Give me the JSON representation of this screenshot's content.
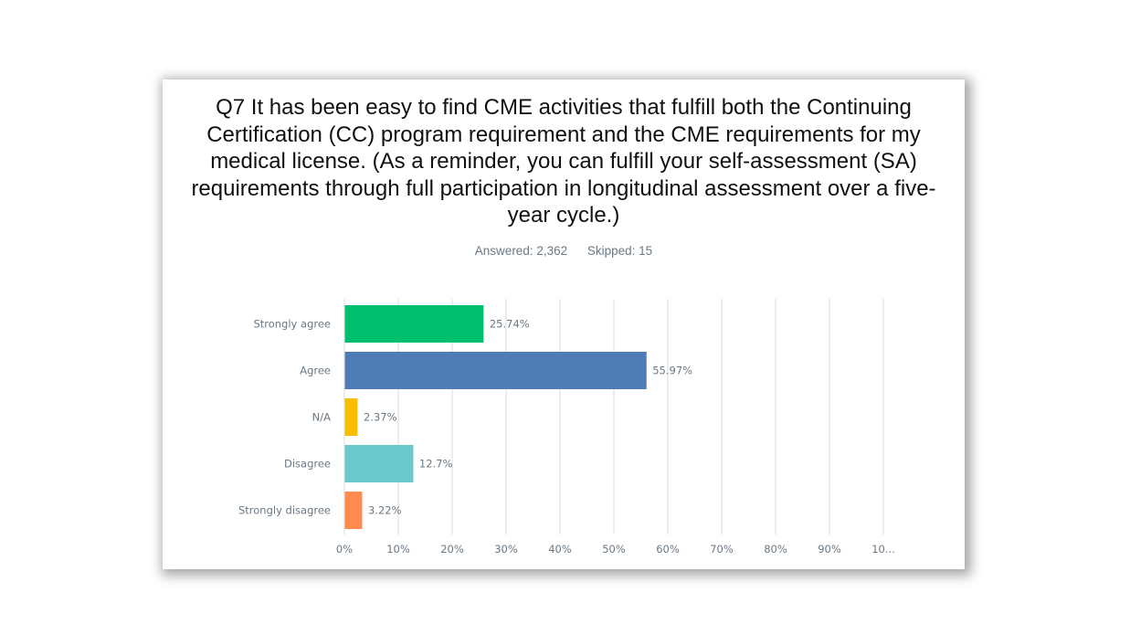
{
  "question": {
    "title": "Q7 It has been easy to find CME activities that fulfill both the Continuing Certification (CC) program requirement and the CME requirements for my medical license. (As a reminder, you can fulfill your self-assessment (SA) requirements through full participation in longitudinal assessment over a five-year cycle.)",
    "answered": "Answered: 2,362",
    "skipped": "Skipped: 15"
  },
  "chart_data": {
    "type": "bar",
    "orientation": "horizontal",
    "title": "Q7 It has been easy to find CME activities that fulfill both the Continuing Certification (CC) program requirement and the CME requirements for my medical license. (As a reminder, you can fulfill your self-assessment (SA) requirements through full participation in longitudinal assessment over a five-year cycle.)",
    "categories": [
      "Strongly agree",
      "Agree",
      "N/A",
      "Disagree",
      "Strongly disagree"
    ],
    "values": [
      25.74,
      55.97,
      2.37,
      12.7,
      3.22
    ],
    "data_labels": [
      "25.74%",
      "55.97%",
      "2.37%",
      "12.7%",
      "3.22%"
    ],
    "colors": [
      "#00bf6f",
      "#507cb6",
      "#f9be00",
      "#6bc8cd",
      "#ff8b4f"
    ],
    "xlabel": "",
    "ylabel": "",
    "xlim": [
      0,
      100
    ],
    "x_ticks": [
      "0%",
      "10%",
      "20%",
      "30%",
      "40%",
      "50%",
      "60%",
      "70%",
      "80%",
      "90%",
      "10..."
    ],
    "grid": true,
    "legend": "none"
  }
}
